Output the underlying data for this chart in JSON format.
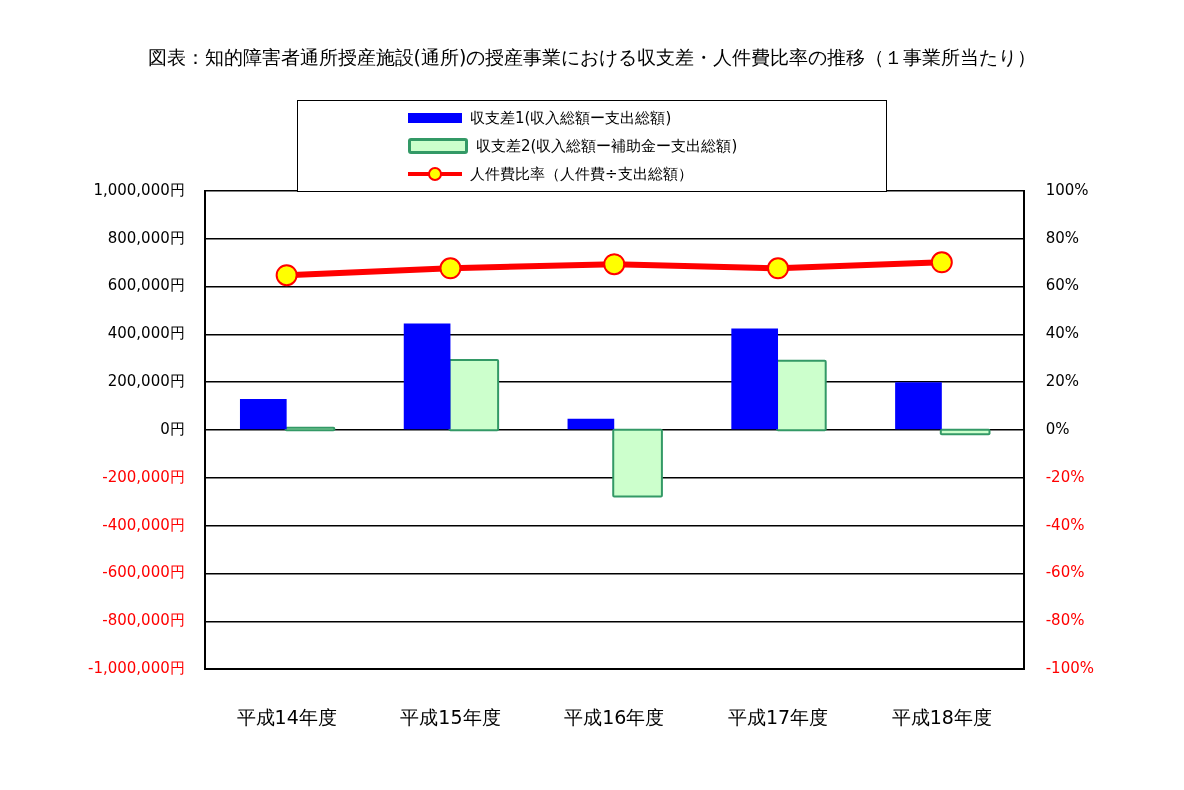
{
  "chart_data": {
    "type": "bar",
    "title": "図表：知的障害者通所授産施設(通所)の授産事業における収支差・人件費比率の推移（１事業所当たり）",
    "categories": [
      "平成14年度",
      "平成15年度",
      "平成16年度",
      "平成17年度",
      "平成18年度"
    ],
    "series": [
      {
        "name": "収支差1(収入総額ー支出総額)",
        "color": "#0000ff",
        "values": [
          130000,
          445000,
          47000,
          424000,
          200000
        ]
      },
      {
        "name": "収支差2(収入総額ー補助金ー支出総額)",
        "color": "#ccffcc",
        "values": [
          5000,
          288000,
          -274000,
          285000,
          -14000
        ]
      },
      {
        "name": "人件費比率（人件費÷支出総額）",
        "type": "line",
        "axis": "y2",
        "marker": "circle",
        "color": "#ff0000",
        "values": [
          64.7,
          67.6,
          69.3,
          67.6,
          70.1
        ]
      }
    ],
    "ylim": [
      -1000000,
      1000000
    ],
    "yticks": [
      {
        "value": -1000000,
        "label": "-1,000,000円"
      },
      {
        "value": -800000,
        "label": "-800,000円"
      },
      {
        "value": -600000,
        "label": "-600,000円"
      },
      {
        "value": -400000,
        "label": "-400,000円"
      },
      {
        "value": -200000,
        "label": "-200,000円"
      },
      {
        "value": 0,
        "label": "0円"
      },
      {
        "value": 200000,
        "label": "200,000円"
      },
      {
        "value": 400000,
        "label": "400,000円"
      },
      {
        "value": 600000,
        "label": "600,000円"
      },
      {
        "value": 800000,
        "label": "800,000円"
      },
      {
        "value": 1000000,
        "label": "1,000,000円"
      }
    ],
    "y2lim": [
      -100,
      100
    ],
    "y2ticks": [
      {
        "value": -100,
        "label": "-100%"
      },
      {
        "value": -80,
        "label": "-80%"
      },
      {
        "value": -60,
        "label": "-60%"
      },
      {
        "value": -40,
        "label": "-40%"
      },
      {
        "value": -20,
        "label": "-20%"
      },
      {
        "value": 0,
        "label": "0%"
      },
      {
        "value": 20,
        "label": "20%"
      },
      {
        "value": 40,
        "label": "40%"
      },
      {
        "value": 60,
        "label": "60%"
      },
      {
        "value": 80,
        "label": "80%"
      },
      {
        "value": 100,
        "label": "100%"
      }
    ],
    "grid": "y",
    "legend": "top"
  }
}
